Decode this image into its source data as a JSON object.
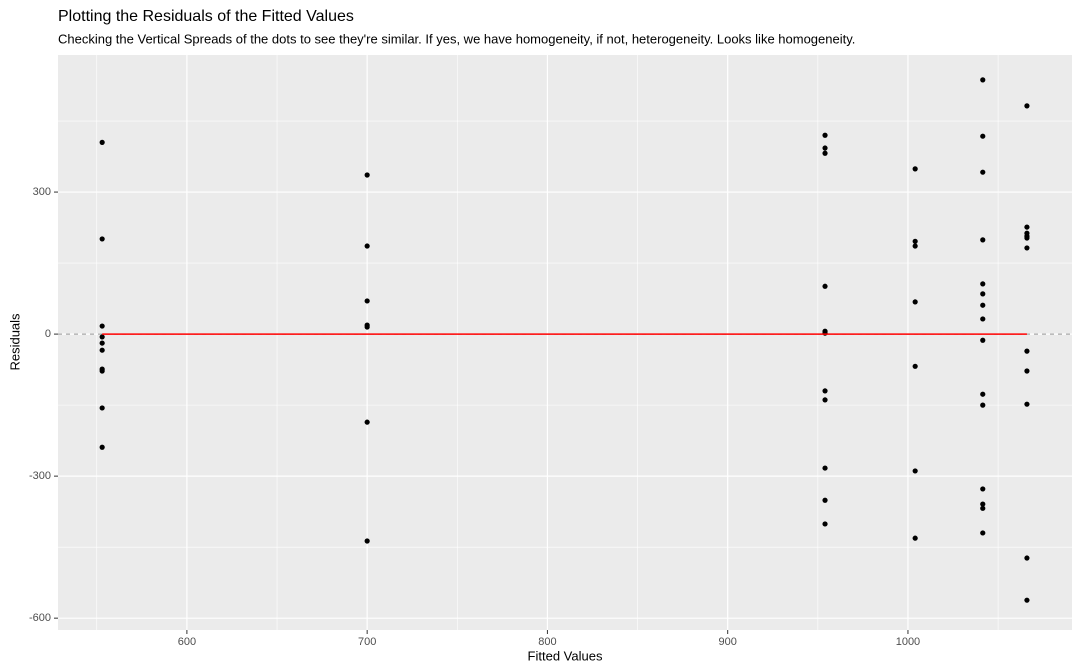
{
  "chart_data": {
    "type": "scatter",
    "title": "Plotting the Residuals of the Fitted Values",
    "subtitle": "Checking the Vertical Spreads of the dots to see they're similar. If yes, we have homogeneity, if not, heterogeneity. Looks like homogeneity.",
    "x_label": "Fitted Values",
    "y_label": "Residuals",
    "xlim": [
      528.5,
      1091
    ],
    "ylim": [
      -625,
      589.5
    ],
    "xticks": [
      600,
      700,
      800,
      900,
      1000
    ],
    "yticks": [
      -600,
      -300,
      0,
      300
    ],
    "xminorticks": [
      550,
      650,
      750,
      850,
      950,
      1050
    ],
    "yminorticks": [
      -450,
      -150,
      150,
      450
    ],
    "grid": true,
    "point_color": "#000000",
    "x": [
      553,
      553,
      553,
      553,
      553,
      553,
      553,
      553,
      553,
      553,
      700,
      700,
      700,
      700,
      700,
      700,
      700,
      954,
      954,
      954,
      954,
      954,
      954,
      954,
      954,
      954,
      954,
      954,
      1004,
      1004,
      1004,
      1004,
      1004,
      1004,
      1004,
      1041.5,
      1041.5,
      1041.5,
      1041.5,
      1041.5,
      1041.5,
      1041.5,
      1041.5,
      1041.5,
      1041.5,
      1041.5,
      1041.5,
      1041.5,
      1041.5,
      1041.5,
      1066,
      1066,
      1066,
      1066,
      1066,
      1066,
      1066,
      1066,
      1066,
      1066,
      1066
    ],
    "values": [
      405,
      201,
      17,
      -6,
      -19,
      -34,
      -74,
      -78,
      -156,
      -239,
      336,
      186,
      70,
      19,
      15,
      -186,
      -437,
      420,
      393,
      382,
      101,
      6,
      2,
      -120,
      -139,
      -283,
      -351,
      -401,
      349,
      196,
      186,
      68,
      -68,
      -289,
      -431,
      537,
      418,
      342,
      199,
      106,
      85,
      61,
      32,
      -13,
      -127,
      -150,
      -327,
      -359,
      -368,
      -420,
      482,
      226,
      213,
      207,
      203,
      182,
      -36,
      -78,
      -148,
      -473,
      -562
    ],
    "fit_line": {
      "x": [
        553,
        1066
      ],
      "y": [
        0,
        0
      ],
      "color": "#ff0000"
    },
    "hline": {
      "y": 0,
      "color": "#999999"
    }
  }
}
